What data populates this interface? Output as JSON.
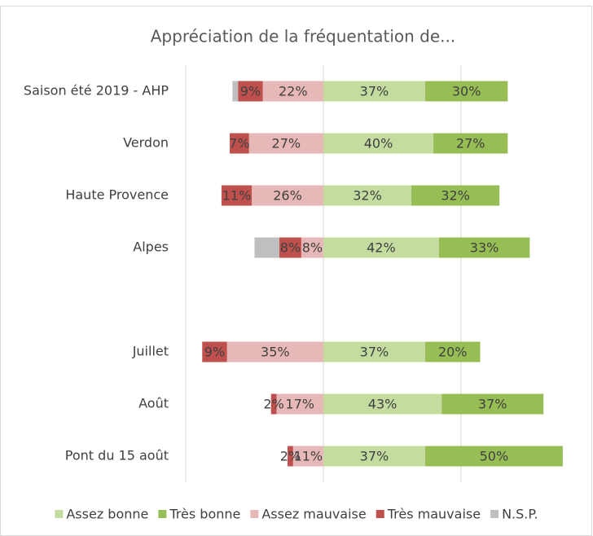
{
  "chart_data": {
    "type": "diverging_bar",
    "title": "Appréciation de la fréquentation de...",
    "categories": [
      "Saison été 2019 - AHP",
      "Verdon",
      "Haute Provence",
      "Alpes",
      null,
      "Juillet",
      "Août",
      "Pont du 15 août"
    ],
    "xlim": [
      -50,
      90
    ],
    "xticks": [
      -50,
      0,
      50
    ],
    "grid": true,
    "legend": "bottom",
    "series": [
      {
        "name": "Assez bonne",
        "color": "#c4dca0",
        "direction": "right",
        "values": [
          37,
          40,
          32,
          42,
          null,
          37,
          43,
          37
        ],
        "value_labels": [
          "37%",
          "40%",
          "32%",
          "42%",
          null,
          "37%",
          "43%",
          "37%"
        ]
      },
      {
        "name": "Très bonne",
        "color": "#97bd55",
        "direction": "right",
        "values": [
          30,
          27,
          32,
          33,
          null,
          20,
          37,
          50
        ],
        "value_labels": [
          "30%",
          "27%",
          "32%",
          "33%",
          null,
          "20%",
          "37%",
          "50%"
        ]
      },
      {
        "name": "Assez mauvaise",
        "color": "#e6b8b7",
        "direction": "left",
        "values": [
          22,
          27,
          26,
          8,
          null,
          35,
          17,
          11
        ],
        "value_labels": [
          "22%",
          "27%",
          "26%",
          "8%",
          null,
          "35%",
          "17%",
          "11%"
        ]
      },
      {
        "name": "Très mauvaise",
        "color": "#c0504d",
        "direction": "left",
        "values": [
          9,
          7,
          11,
          8,
          null,
          9,
          2,
          2
        ],
        "value_labels": [
          "9%",
          "7%",
          "11%",
          "8%",
          null,
          "9%",
          "2%",
          "2%"
        ]
      },
      {
        "name": "N.S.P.",
        "color": "#bfbfbf",
        "direction": "left",
        "values": [
          2,
          null,
          null,
          9,
          null,
          null,
          null,
          null
        ]
      }
    ]
  }
}
